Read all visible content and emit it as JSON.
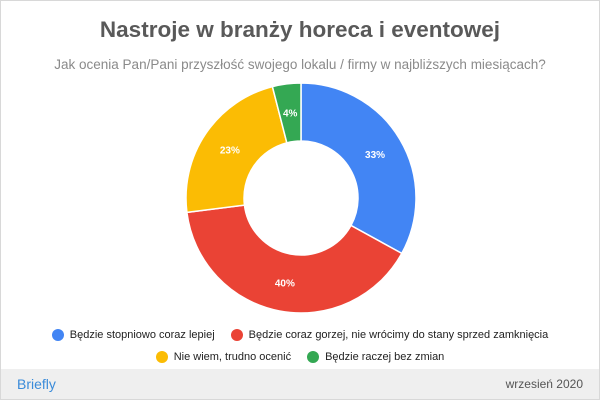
{
  "title": "Nastroje w branży horeca i eventowej",
  "subtitle": "Jak ocenia Pan/Pani przyszłość swojego lokalu / firmy w najbliższych miesiącach?",
  "footer": {
    "brand": "Briefly",
    "date": "wrzesień 2020"
  },
  "chart_data": {
    "type": "pie",
    "donut": true,
    "title": "Nastroje w branży horeca i eventowej",
    "subtitle": "Jak ocenia Pan/Pani przyszłość swojego lokalu / firmy w najbliższych miesiącach?",
    "legend_position": "bottom",
    "slices": [
      {
        "label": "Będzie stopniowo coraz lepiej",
        "value": 33,
        "display": "33%",
        "color": "#4285f4"
      },
      {
        "label": "Będzie coraz gorzej, nie wrócimy do stany sprzed zamknięcia",
        "value": 40,
        "display": "40%",
        "color": "#ea4335"
      },
      {
        "label": "Nie wiem, trudno ocenić",
        "value": 23,
        "display": "23%",
        "color": "#fbbc04"
      },
      {
        "label": "Będzie raczej bez zmian",
        "value": 4,
        "display": "4%",
        "color": "#34a853"
      }
    ]
  }
}
